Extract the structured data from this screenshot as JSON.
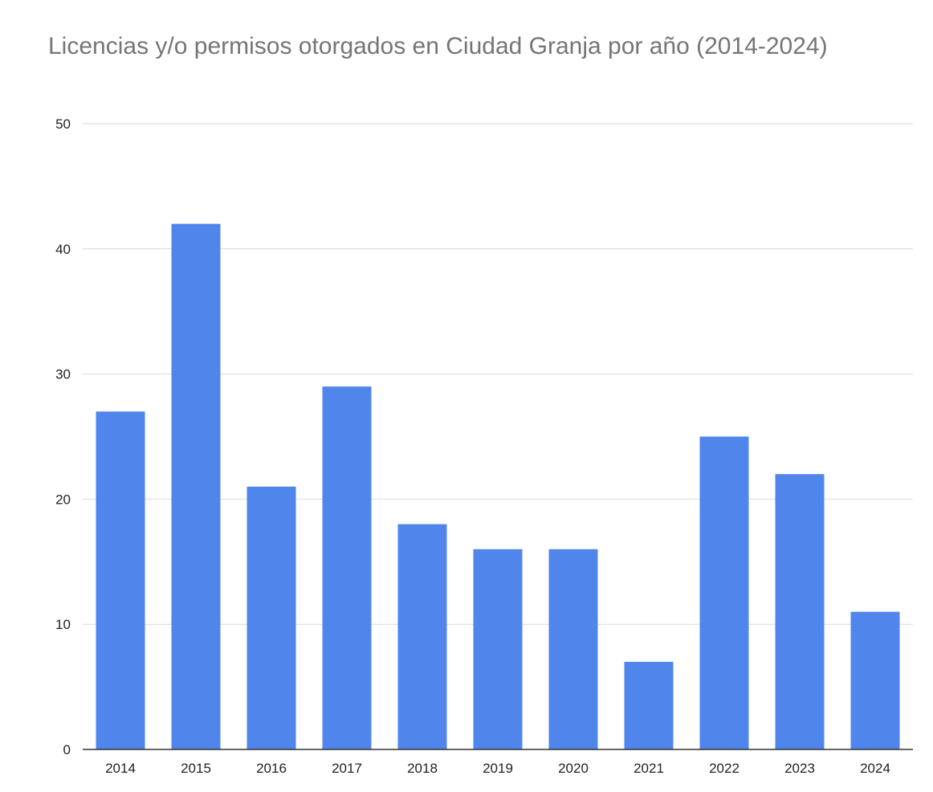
{
  "chart_data": {
    "type": "bar",
    "title": "Licencias y/o permisos otorgados en Ciudad Granja por año (2014-2024)",
    "xlabel": "",
    "ylabel": "",
    "categories": [
      "2014",
      "2015",
      "2016",
      "2017",
      "2018",
      "2019",
      "2020",
      "2021",
      "2022",
      "2023",
      "2024"
    ],
    "values": [
      27,
      42,
      21,
      29,
      18,
      16,
      16,
      7,
      25,
      22,
      11
    ],
    "ylim": [
      0,
      50
    ],
    "yticks": [
      0,
      10,
      20,
      30,
      40,
      50
    ],
    "grid": true,
    "legend": "none",
    "bar_color": "#5086EC",
    "grid_color": "#D9D9D9",
    "axis_color": "#333333"
  }
}
